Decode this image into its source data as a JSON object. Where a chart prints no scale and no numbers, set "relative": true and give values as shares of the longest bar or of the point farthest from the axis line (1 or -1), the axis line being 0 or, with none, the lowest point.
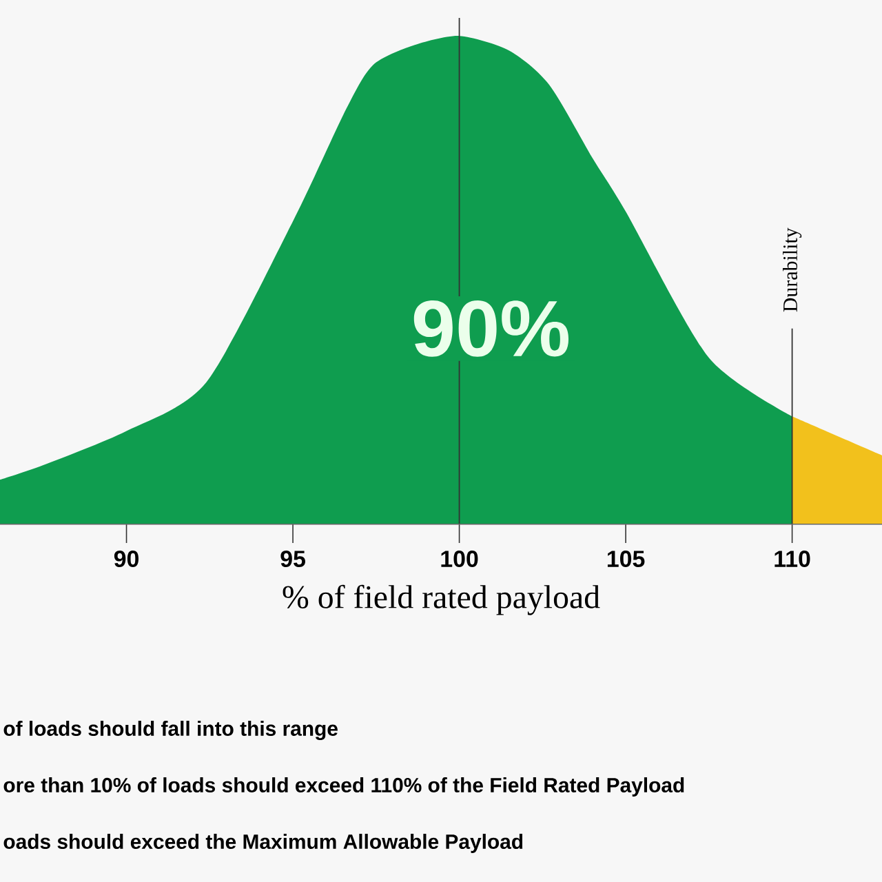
{
  "chart_data": {
    "type": "area",
    "relative": true,
    "xlabel": "% of field rated payload",
    "xlim": [
      86.2,
      112.7
    ],
    "xticks": [
      90,
      95,
      100,
      105,
      110
    ],
    "series": [
      {
        "color": "#0f9d4f",
        "x": [
          86.2,
          87.5,
          90,
          92.4,
          95,
          96.6,
          97.4,
          98.6,
          100,
          101.5,
          102.7,
          104,
          105,
          107.5,
          110
        ],
        "values": [
          0.09,
          0.12,
          0.19,
          0.29,
          0.62,
          0.85,
          0.94,
          0.98,
          1,
          0.97,
          0.9,
          0.75,
          0.64,
          0.34,
          0.22
        ]
      },
      {
        "color": "#f2c11c",
        "x": [
          110,
          112.7
        ],
        "values": [
          0.22,
          0.14
        ]
      }
    ],
    "ref_lines": [
      {
        "axis": "x",
        "value": 100,
        "label": null
      },
      {
        "axis": "x",
        "value": 110,
        "label": "Durability"
      }
    ],
    "annotations": [
      "90%",
      "of loads should fall into this range",
      "ore than 10% of loads should exceed 110% of the Field Rated Payload",
      "oads should exceed the Maximum Allowable Payload"
    ]
  }
}
